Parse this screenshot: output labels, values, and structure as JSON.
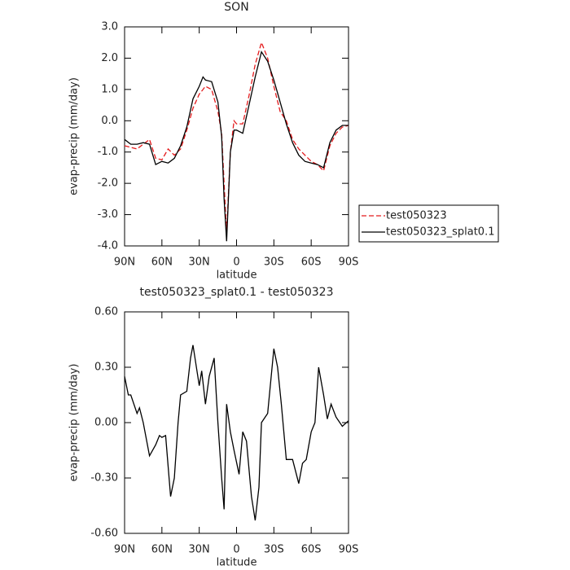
{
  "chart_data": [
    {
      "type": "line",
      "title": "SON",
      "x_label": "latitude",
      "y_label": "evap-precip (mm/day)",
      "x": [
        90,
        85,
        80,
        75,
        70,
        65,
        60,
        55,
        50,
        45,
        40,
        35,
        30,
        27,
        25,
        20,
        15,
        12,
        10,
        8,
        5,
        2,
        0,
        -5,
        -10,
        -15,
        -20,
        -25,
        -30,
        -35,
        -40,
        -45,
        -50,
        -55,
        -60,
        -65,
        -70,
        -75,
        -80,
        -85,
        -90
      ],
      "series": [
        {
          "name": "test050323",
          "color": "#e41a1c",
          "dash": true,
          "values": [
            -0.8,
            -0.85,
            -0.9,
            -0.75,
            -0.6,
            -1.2,
            -1.25,
            -0.9,
            -1.1,
            -0.9,
            -0.3,
            0.4,
            0.85,
            1.0,
            1.1,
            1.0,
            0.3,
            -0.4,
            -2.0,
            -3.6,
            -1.0,
            0.0,
            -0.1,
            -0.1,
            0.8,
            1.8,
            2.5,
            2.0,
            1.1,
            0.3,
            0.0,
            -0.6,
            -0.9,
            -1.1,
            -1.3,
            -1.4,
            -1.6,
            -0.8,
            -0.4,
            -0.2,
            -0.15
          ]
        },
        {
          "name": "test050323_splat0.1",
          "color": "#000000",
          "dash": false,
          "values": [
            -0.6,
            -0.75,
            -0.75,
            -0.7,
            -0.75,
            -1.4,
            -1.3,
            -1.35,
            -1.2,
            -0.8,
            -0.2,
            0.7,
            1.1,
            1.4,
            1.3,
            1.25,
            0.6,
            -0.5,
            -2.5,
            -3.85,
            -1.0,
            -0.3,
            -0.3,
            -0.4,
            0.5,
            1.4,
            2.2,
            1.9,
            1.3,
            0.6,
            -0.1,
            -0.7,
            -1.1,
            -1.3,
            -1.35,
            -1.4,
            -1.5,
            -0.7,
            -0.3,
            -0.15,
            -0.15
          ]
        }
      ],
      "xlim": [
        90,
        -90
      ],
      "xticks": [
        {
          "value": 90,
          "label": "90N"
        },
        {
          "value": 60,
          "label": "60N"
        },
        {
          "value": 30,
          "label": "30N"
        },
        0,
        {
          "value": -30,
          "label": "30S"
        },
        {
          "value": -60,
          "label": "60S"
        },
        {
          "value": -90,
          "label": "90S"
        }
      ],
      "ylim": [
        -4,
        3
      ],
      "yticks": [
        {
          "value": 3,
          "label": "3.0"
        },
        {
          "value": 2,
          "label": "2.0"
        },
        {
          "value": 1,
          "label": "1.0"
        },
        {
          "value": 0,
          "label": "0.0"
        },
        {
          "value": -1,
          "label": "-1.0"
        },
        {
          "value": -2,
          "label": "-2.0"
        },
        {
          "value": -3,
          "label": "-3.0"
        },
        {
          "value": -4,
          "label": "-4.0"
        }
      ],
      "legend": "right"
    },
    {
      "type": "line",
      "title": "test050323_splat0.1 - test050323",
      "x_label": "latitude",
      "y_label": "evap-precip (mm/day)",
      "x": [
        90,
        87,
        85,
        80,
        78,
        75,
        70,
        65,
        62,
        60,
        57,
        53,
        50,
        47,
        45,
        40,
        37,
        35,
        30,
        28,
        25,
        22,
        18,
        15,
        12,
        10,
        8,
        5,
        2,
        -2,
        -5,
        -8,
        -12,
        -15,
        -18,
        -20,
        -25,
        -30,
        -33,
        -36,
        -40,
        -45,
        -50,
        -53,
        -56,
        -60,
        -63,
        -66,
        -70,
        -73,
        -76,
        -80,
        -85,
        -90
      ],
      "series": [
        {
          "name": "test050323_splat0.1 - test050323",
          "color": "#000000",
          "dash": false,
          "values": [
            0.25,
            0.15,
            0.15,
            0.05,
            0.08,
            0.0,
            -0.18,
            -0.12,
            -0.07,
            -0.08,
            -0.07,
            -0.4,
            -0.3,
            0.0,
            0.15,
            0.17,
            0.35,
            0.42,
            0.2,
            0.28,
            0.1,
            0.25,
            0.35,
            0.0,
            -0.3,
            -0.47,
            0.1,
            -0.05,
            -0.15,
            -0.28,
            -0.05,
            -0.1,
            -0.4,
            -0.53,
            -0.35,
            0.0,
            0.05,
            0.4,
            0.3,
            0.1,
            -0.2,
            -0.2,
            -0.33,
            -0.22,
            -0.2,
            -0.05,
            0.0,
            0.3,
            0.15,
            0.02,
            0.1,
            0.03,
            -0.02,
            0.01
          ]
        }
      ],
      "xlim": [
        90,
        -90
      ],
      "xticks": [
        {
          "value": 90,
          "label": "90N"
        },
        {
          "value": 60,
          "label": "60N"
        },
        {
          "value": 30,
          "label": "30N"
        },
        0,
        {
          "value": -30,
          "label": "30S"
        },
        {
          "value": -60,
          "label": "60S"
        },
        {
          "value": -90,
          "label": "90S"
        }
      ],
      "ylim": [
        -0.6,
        0.6
      ],
      "yticks": [
        {
          "value": 0.6,
          "label": "0.60"
        },
        {
          "value": 0.3,
          "label": "0.30"
        },
        {
          "value": 0,
          "label": "0.00"
        },
        {
          "value": -0.3,
          "label": "-0.30"
        },
        {
          "value": -0.6,
          "label": "-0.60"
        }
      ]
    }
  ]
}
